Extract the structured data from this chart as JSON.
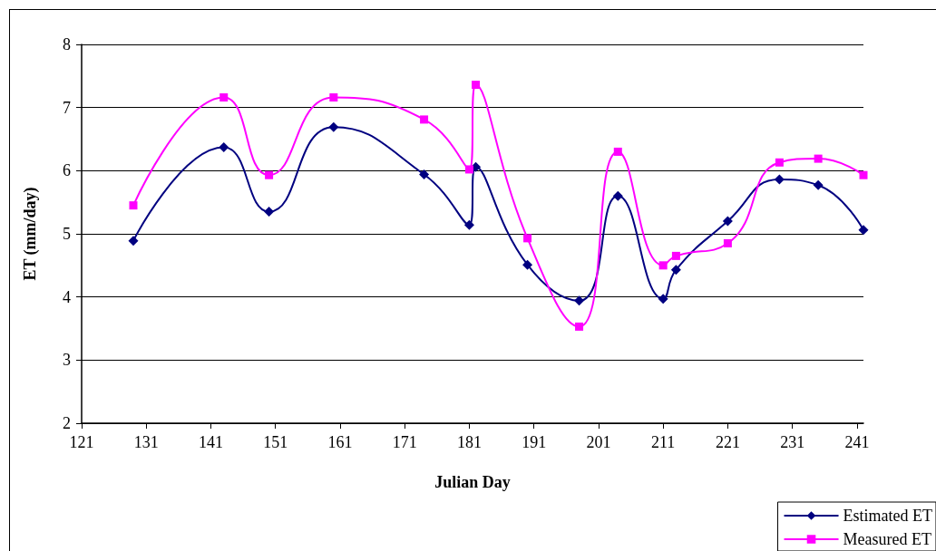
{
  "chart_data": {
    "type": "line",
    "xlabel": "Julian Day",
    "ylabel": "ET (mm/day)",
    "xlim": [
      121,
      242
    ],
    "xticks": [
      121,
      131,
      141,
      151,
      161,
      171,
      181,
      191,
      201,
      211,
      221,
      231,
      241
    ],
    "ylim": [
      2,
      8
    ],
    "yticks": [
      2,
      3,
      4,
      5,
      6,
      7,
      8
    ],
    "grid": "y",
    "legend": "bottom right",
    "series": [
      {
        "name": "Estimated ET",
        "color": "#000080",
        "marker": "diamond",
        "x": [
          129,
          143,
          150,
          160,
          174,
          181,
          182,
          190,
          198,
          204,
          211,
          213,
          221,
          229,
          235,
          242
        ],
        "values": [
          4.89,
          6.37,
          5.35,
          6.69,
          5.94,
          5.14,
          6.06,
          4.51,
          3.94,
          5.6,
          3.97,
          4.43,
          5.2,
          5.86,
          5.77,
          5.06
        ]
      },
      {
        "name": "Measured ET",
        "color": "#ff00ff",
        "marker": "square",
        "x": [
          129,
          143,
          150,
          160,
          174,
          181,
          182,
          190,
          198,
          204,
          211,
          213,
          221,
          229,
          235,
          242
        ],
        "values": [
          5.45,
          7.16,
          5.93,
          7.16,
          6.81,
          6.02,
          7.36,
          4.93,
          3.53,
          6.3,
          4.5,
          4.65,
          4.85,
          6.13,
          6.19,
          5.93
        ]
      }
    ]
  }
}
